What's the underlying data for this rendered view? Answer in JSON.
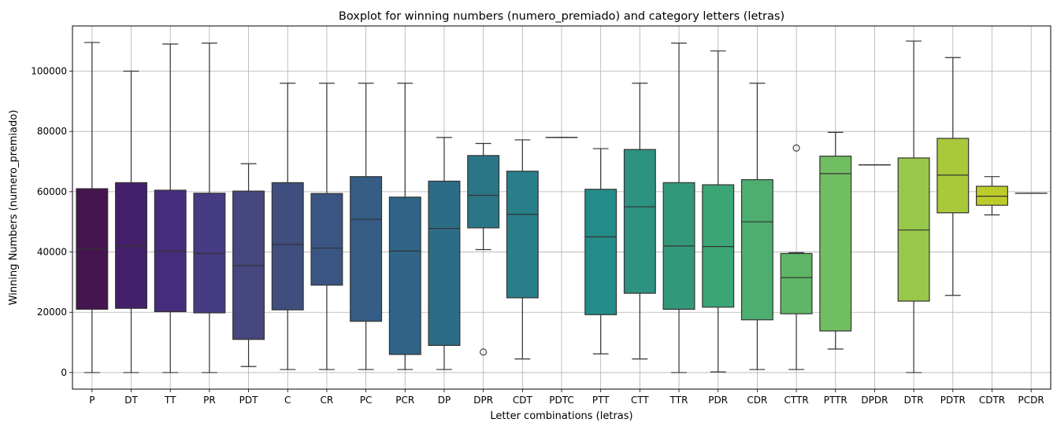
{
  "chart_data": {
    "type": "boxplot",
    "title": "Boxplot for winning numbers (numero_premiado) and category letters (letras)",
    "xlabel": "Letter combinations (letras)",
    "ylabel": "Winning Numbers (numero_premiado)",
    "ylim": [
      -5500,
      115000
    ],
    "yticks": [
      0,
      20000,
      40000,
      60000,
      80000,
      100000
    ],
    "grid": true,
    "categories": [
      "P",
      "DT",
      "TT",
      "PR",
      "PDT",
      "C",
      "CR",
      "PC",
      "PCR",
      "DP",
      "DPR",
      "CDT",
      "PDTC",
      "PTT",
      "CTT",
      "TTR",
      "PDR",
      "CDR",
      "CTTR",
      "PTTR",
      "DPDR",
      "DTR",
      "PDTR",
      "CDTR",
      "PCDR"
    ],
    "boxes": [
      {
        "whisker_low": 0,
        "q1": 21000,
        "median": 41000,
        "q3": 61000,
        "whisker_high": 109500,
        "outliers": [],
        "color": "#44154e"
      },
      {
        "whisker_low": 0,
        "q1": 21300,
        "median": 42000,
        "q3": 63000,
        "whisker_high": 100000,
        "outliers": [],
        "color": "#45206a"
      },
      {
        "whisker_low": 0,
        "q1": 20200,
        "median": 40300,
        "q3": 60500,
        "whisker_high": 109000,
        "outliers": [],
        "color": "#462d7c"
      },
      {
        "whisker_low": 0,
        "q1": 19800,
        "median": 39500,
        "q3": 59500,
        "whisker_high": 109300,
        "outliers": [],
        "color": "#463c83"
      },
      {
        "whisker_low": 2000,
        "q1": 11000,
        "median": 35500,
        "q3": 60200,
        "whisker_high": 69300,
        "outliers": [],
        "color": "#46477e"
      },
      {
        "whisker_low": 1000,
        "q1": 20800,
        "median": 42500,
        "q3": 63000,
        "whisker_high": 96000,
        "outliers": [],
        "color": "#3f4d7f"
      },
      {
        "whisker_low": 1000,
        "q1": 29000,
        "median": 41300,
        "q3": 59400,
        "whisker_high": 96000,
        "outliers": [],
        "color": "#3a5583"
      },
      {
        "whisker_low": 1000,
        "q1": 17000,
        "median": 50800,
        "q3": 65000,
        "whisker_high": 96000,
        "outliers": [],
        "color": "#355d86"
      },
      {
        "whisker_low": 1000,
        "q1": 6000,
        "median": 40300,
        "q3": 58200,
        "whisker_high": 96000,
        "outliers": [],
        "color": "#2f6487"
      },
      {
        "whisker_low": 1000,
        "q1": 9000,
        "median": 47800,
        "q3": 63500,
        "whisker_high": 78000,
        "outliers": [],
        "color": "#2d6c86"
      },
      {
        "whisker_low": 40800,
        "q1": 48000,
        "median": 58800,
        "q3": 72000,
        "whisker_high": 76000,
        "outliers": [
          6800
        ],
        "color": "#2a7686"
      },
      {
        "whisker_low": 4500,
        "q1": 24800,
        "median": 52500,
        "q3": 66800,
        "whisker_high": 77200,
        "outliers": [],
        "color": "#287e89"
      },
      {
        "whisker_low": 78000,
        "q1": 78000,
        "median": 78000,
        "q3": 78000,
        "whisker_high": 78000,
        "outliers": [],
        "color": "#25858b"
      },
      {
        "whisker_low": 6200,
        "q1": 19200,
        "median": 45000,
        "q3": 60800,
        "whisker_high": 74300,
        "outliers": [],
        "color": "#248c88"
      },
      {
        "whisker_low": 4500,
        "q1": 26300,
        "median": 55000,
        "q3": 74000,
        "whisker_high": 96000,
        "outliers": [],
        "color": "#2d9280"
      },
      {
        "whisker_low": 0,
        "q1": 21000,
        "median": 42000,
        "q3": 63000,
        "whisker_high": 109300,
        "outliers": [],
        "color": "#33987a"
      },
      {
        "whisker_low": 200,
        "q1": 21700,
        "median": 41800,
        "q3": 62300,
        "whisker_high": 106700,
        "outliers": [],
        "color": "#3ca576"
      },
      {
        "whisker_low": 1000,
        "q1": 17500,
        "median": 50000,
        "q3": 64000,
        "whisker_high": 96000,
        "outliers": [],
        "color": "#4eae70"
      },
      {
        "whisker_low": 1000,
        "q1": 19500,
        "median": 31500,
        "q3": 39500,
        "whisker_high": 39800,
        "outliers": [
          74500
        ],
        "color": "#5eb766"
      },
      {
        "whisker_low": 7800,
        "q1": 13800,
        "median": 66000,
        "q3": 71800,
        "whisker_high": 79700,
        "outliers": [],
        "color": "#71be62"
      },
      {
        "whisker_low": 68900,
        "q1": 68900,
        "median": 68900,
        "q3": 68900,
        "whisker_high": 68900,
        "outliers": [],
        "color": "#83c35b"
      },
      {
        "whisker_low": 0,
        "q1": 23700,
        "median": 47300,
        "q3": 71200,
        "whisker_high": 110000,
        "outliers": [],
        "color": "#98c84a"
      },
      {
        "whisker_low": 25600,
        "q1": 53000,
        "median": 65500,
        "q3": 77700,
        "whisker_high": 104500,
        "outliers": [],
        "color": "#a9c83b"
      },
      {
        "whisker_low": 52300,
        "q1": 55500,
        "median": 58500,
        "q3": 61800,
        "whisker_high": 65000,
        "outliers": [],
        "color": "#bdcc2a"
      },
      {
        "whisker_low": 59500,
        "q1": 59500,
        "median": 59500,
        "q3": 59500,
        "whisker_high": 59500,
        "outliers": [],
        "color": "#d3d12c"
      }
    ]
  }
}
